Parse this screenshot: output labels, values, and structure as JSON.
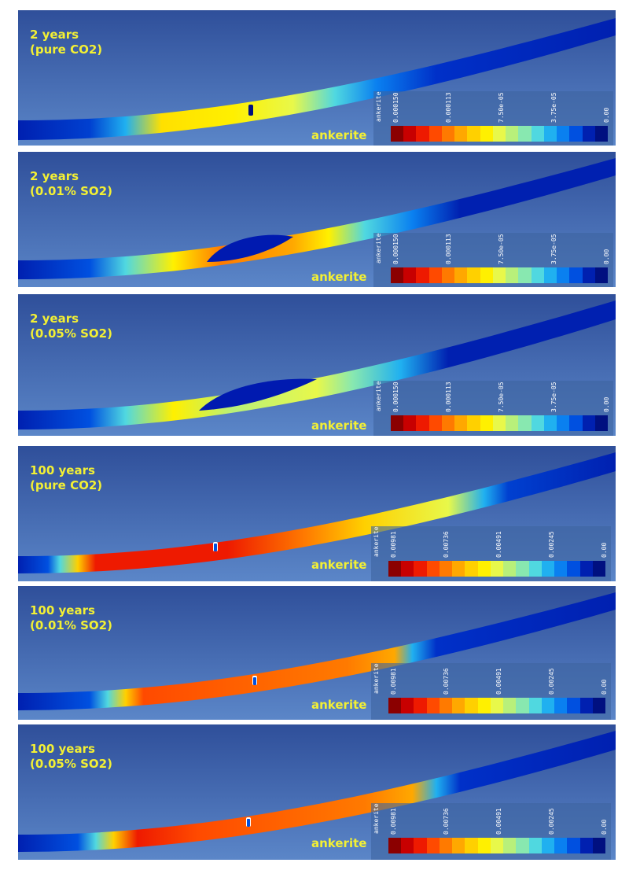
{
  "panels": [
    {
      "duration": "2 years",
      "condition": "(pure CO2)",
      "variable": "ankerite",
      "legend_title": "ankerite",
      "ticks": [
        "0.000150",
        "0.000113",
        "7.50e-05",
        "3.75e-05",
        "0.00"
      ]
    },
    {
      "duration": "2 years",
      "condition": "(0.01% SO2)",
      "variable": "ankerite",
      "legend_title": "ankerite",
      "ticks": [
        "0.000150",
        "0.000113",
        "7.50e-05",
        "3.75e-05",
        "0.00"
      ]
    },
    {
      "duration": "2 years",
      "condition": "(0.05% SO2)",
      "variable": "ankerite",
      "legend_title": "ankerite",
      "ticks": [
        "0.000150",
        "0.000113",
        "7.50e-05",
        "3.75e-05",
        "0.00"
      ]
    },
    {
      "duration": "100 years",
      "condition": "(pure CO2)",
      "variable": "ankerite",
      "legend_title": "ankerite",
      "ticks": [
        "0.00981",
        "0.00736",
        "0.00491",
        "0.00245",
        "0.00"
      ]
    },
    {
      "duration": "100 years",
      "condition": "(0.01% SO2)",
      "variable": "ankerite",
      "legend_title": "ankerite",
      "ticks": [
        "0.00981",
        "0.00736",
        "0.00491",
        "0.00245",
        "0.00"
      ]
    },
    {
      "duration": "100 years",
      "condition": "(0.05% SO2)",
      "variable": "ankerite",
      "legend_title": "ankerite",
      "ticks": [
        "0.00981",
        "0.00736",
        "0.00491",
        "0.00245",
        "0.00"
      ]
    }
  ],
  "colormap": [
    "#8b0000",
    "#c80000",
    "#ee1a00",
    "#ff4a00",
    "#ff7a00",
    "#ffa800",
    "#ffd000",
    "#fff000",
    "#e8f84a",
    "#b8f07a",
    "#88e8b0",
    "#50d8e0",
    "#20b0f0",
    "#0a80f0",
    "#0050e0",
    "#0020b0",
    "#001080"
  ],
  "colors": {
    "label": "#f3f034",
    "background_top": "#2f4f9a",
    "background_bottom": "#5b86c8"
  }
}
